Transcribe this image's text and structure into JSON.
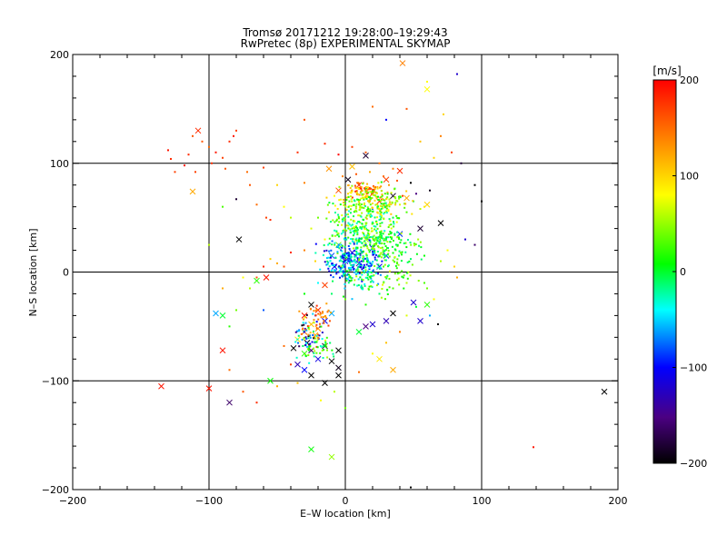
{
  "chart_data": {
    "type": "scatter",
    "title": "Tromsø 20171212 19:28:00–19:29:43",
    "subtitle": "RwPretec (8p) EXPERIMENTAL SKYMAP",
    "xlabel": "E–W location [km]",
    "ylabel": "N–S location [km]",
    "xlim": [
      -200,
      200
    ],
    "ylim": [
      -200,
      200
    ],
    "xticks": [
      "−200",
      "−100",
      "0",
      "100",
      "200"
    ],
    "yticks": [
      "−200",
      "−100",
      "0",
      "100",
      "200"
    ],
    "grid": true,
    "colorbar": {
      "label": "[m/s]",
      "range": [
        -200,
        200
      ],
      "ticks": [
        "200",
        "100",
        "0",
        "−100",
        "−200"
      ],
      "colors": [
        "#000000",
        "#4b0082",
        "#0000ff",
        "#00ffff",
        "#00ff00",
        "#ffff00",
        "#ff8000",
        "#ff0000"
      ]
    },
    "series": [
      {
        "marker": "x",
        "points": [
          [
            -108,
            130,
            180
          ],
          [
            -112,
            74,
            120
          ],
          [
            -78,
            30,
            -200
          ],
          [
            -135,
            -105,
            190
          ],
          [
            -100,
            -107,
            190
          ],
          [
            -85,
            -120,
            -160
          ],
          [
            -90,
            -72,
            190
          ],
          [
            -58,
            -5,
            190
          ],
          [
            -65,
            -8,
            20
          ],
          [
            -90,
            -40,
            0
          ],
          [
            -95,
            -38,
            -60
          ],
          [
            -55,
            -100,
            10
          ],
          [
            -25,
            -163,
            10
          ],
          [
            -10,
            -170,
            50
          ],
          [
            190,
            -110,
            -200
          ],
          [
            42,
            192,
            140
          ],
          [
            60,
            168,
            80
          ],
          [
            40,
            93,
            180
          ],
          [
            15,
            107,
            -180
          ],
          [
            5,
            97,
            110
          ],
          [
            -12,
            95,
            130
          ],
          [
            2,
            85,
            -190
          ],
          [
            30,
            85,
            170
          ],
          [
            10,
            80,
            180
          ],
          [
            -5,
            75,
            160
          ],
          [
            20,
            72,
            150
          ],
          [
            35,
            70,
            -190
          ],
          [
            45,
            68,
            120
          ],
          [
            25,
            65,
            170
          ],
          [
            60,
            62,
            100
          ],
          [
            70,
            45,
            -200
          ],
          [
            55,
            40,
            -180
          ],
          [
            40,
            35,
            -90
          ],
          [
            15,
            30,
            60
          ],
          [
            -5,
            25,
            40
          ],
          [
            20,
            22,
            -100
          ],
          [
            5,
            18,
            -120
          ],
          [
            -10,
            15,
            -80
          ],
          [
            30,
            15,
            -90
          ],
          [
            0,
            10,
            -110
          ],
          [
            10,
            8,
            -130
          ],
          [
            -8,
            5,
            -100
          ],
          [
            25,
            5,
            -110
          ],
          [
            -15,
            -12,
            170
          ],
          [
            -25,
            -30,
            -200
          ],
          [
            -20,
            -35,
            180
          ],
          [
            -10,
            -38,
            -60
          ],
          [
            -30,
            -40,
            190
          ],
          [
            -15,
            -45,
            -100
          ],
          [
            -25,
            -48,
            110
          ],
          [
            -20,
            -52,
            130
          ],
          [
            -30,
            -55,
            150
          ],
          [
            -22,
            -58,
            120
          ],
          [
            -35,
            -62,
            90
          ],
          [
            -28,
            -65,
            -200
          ],
          [
            -15,
            -68,
            -180
          ],
          [
            -38,
            -70,
            -200
          ],
          [
            -25,
            -72,
            -160
          ],
          [
            -30,
            -75,
            20
          ],
          [
            -5,
            -72,
            -200
          ],
          [
            -20,
            -80,
            -110
          ],
          [
            -10,
            -82,
            -200
          ],
          [
            -35,
            -85,
            -130
          ],
          [
            -30,
            -90,
            -100
          ],
          [
            -5,
            -88,
            -190
          ],
          [
            -25,
            -95,
            -200
          ],
          [
            -15,
            -102,
            -200
          ],
          [
            -5,
            -95,
            -200
          ],
          [
            20,
            -48,
            -120
          ],
          [
            15,
            -50,
            -150
          ],
          [
            30,
            -45,
            -130
          ],
          [
            35,
            -38,
            -200
          ],
          [
            50,
            -28,
            -120
          ],
          [
            55,
            -45,
            -120
          ],
          [
            60,
            -30,
            20
          ],
          [
            25,
            -80,
            90
          ],
          [
            35,
            -90,
            120
          ],
          [
            10,
            -55,
            0
          ]
        ]
      },
      {
        "marker": "dot",
        "points": [
          [
            -130,
            112,
            190
          ],
          [
            -128,
            104,
            180
          ],
          [
            -125,
            92,
            170
          ],
          [
            -118,
            98,
            190
          ],
          [
            -115,
            108,
            180
          ],
          [
            -112,
            125,
            160
          ],
          [
            -110,
            92,
            170
          ],
          [
            -105,
            120,
            160
          ],
          [
            -100,
            115,
            150
          ],
          [
            -98,
            100,
            180
          ],
          [
            -95,
            110,
            190
          ],
          [
            -90,
            105,
            170
          ],
          [
            -88,
            95,
            160
          ],
          [
            -85,
            120,
            180
          ],
          [
            -82,
            125,
            190
          ],
          [
            -80,
            130,
            170
          ],
          [
            -80,
            67,
            -180
          ],
          [
            -72,
            92,
            150
          ],
          [
            -70,
            80,
            160
          ],
          [
            -65,
            62,
            150
          ],
          [
            -60,
            96,
            170
          ],
          [
            -58,
            50,
            170
          ],
          [
            -55,
            48,
            180
          ],
          [
            -50,
            80,
            100
          ],
          [
            -45,
            60,
            80
          ],
          [
            -40,
            50,
            60
          ],
          [
            -35,
            110,
            180
          ],
          [
            -30,
            82,
            140
          ],
          [
            -25,
            40,
            70
          ],
          [
            -20,
            50,
            40
          ],
          [
            -22,
            10,
            100
          ],
          [
            -30,
            20,
            140
          ],
          [
            -40,
            18,
            180
          ],
          [
            -45,
            5,
            160
          ],
          [
            -50,
            8,
            120
          ],
          [
            -55,
            12,
            100
          ],
          [
            -60,
            5,
            180
          ],
          [
            -65,
            -5,
            160
          ],
          [
            -70,
            -15,
            60
          ],
          [
            -75,
            -5,
            80
          ],
          [
            -80,
            -35,
            40
          ],
          [
            -85,
            -50,
            20
          ],
          [
            -90,
            -15,
            120
          ],
          [
            -85,
            -90,
            150
          ],
          [
            -75,
            -110,
            160
          ],
          [
            -65,
            -120,
            180
          ],
          [
            -50,
            -105,
            120
          ],
          [
            -45,
            -68,
            150
          ],
          [
            -40,
            -85,
            170
          ],
          [
            -35,
            -102,
            110
          ],
          [
            -18,
            -118,
            80
          ],
          [
            -8,
            -110,
            60
          ],
          [
            0,
            -125,
            40
          ],
          [
            10,
            -92,
            150
          ],
          [
            20,
            -75,
            80
          ],
          [
            30,
            -65,
            110
          ],
          [
            40,
            -55,
            140
          ],
          [
            45,
            -40,
            70
          ],
          [
            52,
            -32,
            0
          ],
          [
            60,
            -15,
            40
          ],
          [
            65,
            -25,
            80
          ],
          [
            68,
            -48,
            -200
          ],
          [
            62,
            -40,
            -60
          ],
          [
            58,
            -10,
            30
          ],
          [
            70,
            10,
            60
          ],
          [
            75,
            20,
            80
          ],
          [
            80,
            5,
            100
          ],
          [
            82,
            -5,
            120
          ],
          [
            88,
            30,
            -120
          ],
          [
            95,
            25,
            -160
          ],
          [
            100,
            65,
            -200
          ],
          [
            95,
            80,
            -200
          ],
          [
            85,
            100,
            -180
          ],
          [
            78,
            110,
            170
          ],
          [
            72,
            145,
            100
          ],
          [
            70,
            125,
            140
          ],
          [
            82,
            182,
            -120
          ],
          [
            60,
            175,
            80
          ],
          [
            65,
            105,
            100
          ],
          [
            55,
            120,
            110
          ],
          [
            45,
            150,
            160
          ],
          [
            30,
            140,
            -100
          ],
          [
            20,
            152,
            150
          ],
          [
            -30,
            140,
            160
          ],
          [
            -15,
            118,
            180
          ],
          [
            -5,
            108,
            200
          ],
          [
            5,
            115,
            170
          ],
          [
            15,
            110,
            160
          ],
          [
            25,
            100,
            150
          ],
          [
            35,
            95,
            140
          ],
          [
            138,
            -161,
            190
          ],
          [
            48,
            -198,
            -200
          ],
          [
            -100,
            25,
            60
          ],
          [
            -90,
            60,
            30
          ],
          [
            -60,
            -35,
            -80
          ],
          [
            -30,
            -20,
            10
          ],
          [
            -20,
            -10,
            -40
          ],
          [
            -10,
            -20,
            -10
          ],
          [
            0,
            -25,
            40
          ],
          [
            15,
            -30,
            20
          ],
          [
            25,
            -20,
            -10
          ],
          [
            35,
            -15,
            30
          ],
          [
            45,
            -10,
            60
          ],
          [
            -5,
            0,
            -120
          ],
          [
            8,
            -2,
            -60
          ],
          [
            18,
            0,
            -20
          ],
          [
            28,
            5,
            30
          ],
          [
            38,
            8,
            20
          ],
          [
            48,
            12,
            -10
          ],
          [
            58,
            15,
            10
          ],
          [
            -15,
            30,
            80
          ],
          [
            -5,
            35,
            -20
          ],
          [
            5,
            40,
            20
          ],
          [
            15,
            45,
            40
          ],
          [
            25,
            48,
            -30
          ],
          [
            35,
            50,
            0
          ],
          [
            45,
            55,
            30
          ],
          [
            55,
            58,
            60
          ],
          [
            -12,
            55,
            100
          ],
          [
            0,
            60,
            -20
          ],
          [
            10,
            62,
            30
          ],
          [
            20,
            58,
            -80
          ],
          [
            30,
            60,
            20
          ],
          [
            40,
            62,
            70
          ],
          [
            50,
            65,
            -10
          ],
          [
            -8,
            70,
            80
          ],
          [
            2,
            72,
            100
          ],
          [
            12,
            75,
            150
          ],
          [
            22,
            78,
            160
          ],
          [
            32,
            80,
            130
          ],
          [
            42,
            70,
            170
          ],
          [
            52,
            72,
            -150
          ],
          [
            62,
            75,
            -190
          ],
          [
            -2,
            88,
            140
          ],
          [
            8,
            90,
            160
          ],
          [
            18,
            92,
            120
          ],
          [
            28,
            88,
            150
          ],
          [
            38,
            84,
            160
          ],
          [
            48,
            82,
            -200
          ],
          [
            58,
            60,
            90
          ]
        ]
      },
      {
        "marker": "dot",
        "cluster": [
          [
            15,
            75,
            8,
            5,
            60,
            100,
            190
          ],
          [
            20,
            65,
            18,
            10,
            200,
            0,
            120
          ],
          [
            10,
            40,
            18,
            18,
            240,
            -40,
            80
          ],
          [
            5,
            10,
            15,
            12,
            260,
            -120,
            0
          ],
          [
            25,
            25,
            18,
            15,
            160,
            -20,
            60
          ],
          [
            -25,
            -55,
            8,
            10,
            70,
            -200,
            190
          ],
          [
            -20,
            -70,
            10,
            8,
            40,
            -40,
            60
          ],
          [
            -20,
            -40,
            8,
            8,
            30,
            120,
            180
          ],
          [
            10,
            -10,
            10,
            10,
            50,
            -60,
            60
          ],
          [
            35,
            -5,
            12,
            12,
            40,
            -20,
            80
          ]
        ]
      }
    ]
  }
}
